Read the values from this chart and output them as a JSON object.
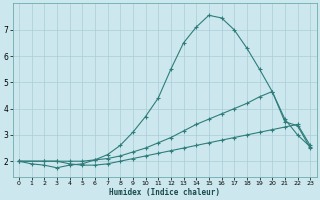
{
  "xlabel": "Humidex (Indice chaleur)",
  "bg_color": "#cce8ee",
  "grid_color": "#aacdd6",
  "line_color": "#2e7d7a",
  "xlim": [
    -0.5,
    23.5
  ],
  "ylim": [
    1.4,
    8.0
  ],
  "xticks": [
    0,
    1,
    2,
    3,
    4,
    5,
    6,
    7,
    8,
    9,
    10,
    11,
    12,
    13,
    14,
    15,
    16,
    17,
    18,
    19,
    20,
    21,
    22,
    23
  ],
  "yticks": [
    2,
    3,
    4,
    5,
    6,
    7
  ],
  "curve1_x": [
    0,
    1,
    2,
    3,
    4,
    5,
    6,
    7,
    8,
    9,
    10,
    11,
    12,
    13,
    14,
    15,
    16,
    17,
    18,
    19,
    20,
    21,
    22,
    23
  ],
  "curve1_y": [
    2.0,
    1.9,
    1.85,
    1.75,
    1.85,
    1.9,
    2.05,
    2.25,
    2.6,
    3.1,
    3.7,
    4.4,
    5.5,
    6.5,
    7.1,
    7.55,
    7.45,
    7.0,
    6.3,
    5.5,
    4.65,
    3.5,
    3.35,
    2.5
  ],
  "curve2_x": [
    0,
    2,
    3,
    4,
    5,
    6,
    7,
    8,
    9,
    10,
    11,
    12,
    13,
    14,
    15,
    16,
    17,
    18,
    19,
    20,
    21,
    22,
    23
  ],
  "curve2_y": [
    2.0,
    2.0,
    2.0,
    2.0,
    2.0,
    2.05,
    2.1,
    2.2,
    2.35,
    2.5,
    2.7,
    2.9,
    3.15,
    3.4,
    3.6,
    3.8,
    4.0,
    4.2,
    4.45,
    4.65,
    3.6,
    3.0,
    2.55
  ],
  "curve3_x": [
    0,
    2,
    3,
    4,
    5,
    6,
    7,
    8,
    9,
    10,
    11,
    12,
    13,
    14,
    15,
    16,
    17,
    18,
    19,
    20,
    21,
    22,
    23
  ],
  "curve3_y": [
    2.0,
    2.0,
    2.0,
    1.9,
    1.85,
    1.85,
    1.9,
    2.0,
    2.1,
    2.2,
    2.3,
    2.4,
    2.5,
    2.6,
    2.7,
    2.8,
    2.9,
    3.0,
    3.1,
    3.2,
    3.3,
    3.4,
    2.6
  ]
}
